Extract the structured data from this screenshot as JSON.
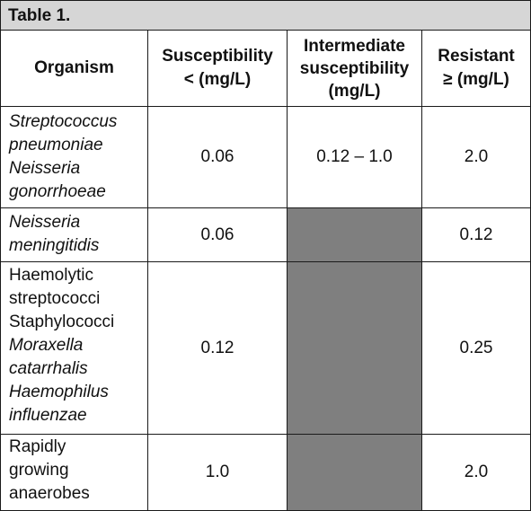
{
  "table": {
    "title": "Table 1.",
    "headers": {
      "organism": "Organism",
      "susceptibility": [
        "Susceptibility",
        "< (mg/L)"
      ],
      "intermediate": [
        "Intermediate",
        "susceptibility",
        "(mg/L)"
      ],
      "resistant": [
        "Resistant",
        "≥ (mg/L)"
      ]
    },
    "rows": [
      {
        "organism_lines": [
          "Streptococcus",
          "pneumoniae",
          "Neisseria",
          "gonorrhoeae"
        ],
        "susceptibility": "0.06",
        "intermediate": "0.12 – 1.0",
        "resistant": "2.0"
      },
      {
        "organism_lines": [
          "Neisseria",
          "meningitidis"
        ],
        "susceptibility": "0.06",
        "intermediate": "",
        "resistant": "0.12"
      },
      {
        "organism_lines": [
          "Haemolytic",
          "streptococci",
          "Staphylococci",
          "Moraxella",
          "catarrhalis",
          "Haemophilus",
          "influenzae"
        ],
        "susceptibility": "0.12",
        "intermediate": "",
        "resistant": "0.25"
      },
      {
        "organism_lines": [
          "Rapidly",
          "growing",
          "anaerobes"
        ],
        "susceptibility": "1.0",
        "intermediate": "",
        "resistant": "2.0"
      }
    ],
    "colors": {
      "title_background": "#d6d6d6",
      "shaded_cell": "#7f7f7f",
      "border": "#1a1a1a"
    }
  }
}
